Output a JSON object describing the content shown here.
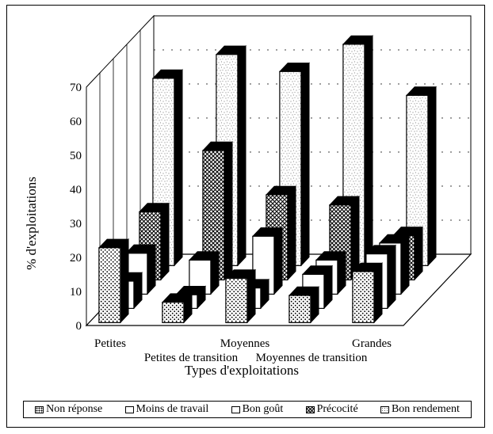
{
  "chart_data": {
    "type": "bar",
    "title": "",
    "xlabel": "Types d'exploitations",
    "ylabel": "% d'exploitations",
    "ylim": [
      0,
      70
    ],
    "yticks": [
      "0",
      "10",
      "20",
      "30",
      "40",
      "50",
      "60",
      "70"
    ],
    "categories": [
      "Petites",
      "Petites de transition",
      "Moyennes",
      "Moyennes de transition",
      "Grandes"
    ],
    "series": [
      {
        "name": "Non réponse",
        "values": [
          22,
          6,
          13,
          8,
          15
        ]
      },
      {
        "name": "Moins de travail",
        "values": [
          8,
          4,
          6,
          10,
          16
        ]
      },
      {
        "name": "Bon goût",
        "values": [
          12,
          10,
          17,
          10,
          15
        ]
      },
      {
        "name": "Précocité",
        "values": [
          20,
          38,
          25,
          22,
          13
        ]
      },
      {
        "name": "Bon rendement",
        "values": [
          55,
          62,
          57,
          65,
          50
        ]
      }
    ],
    "grid": true,
    "legend_position": "bottom"
  },
  "colors": {
    "background": "#ffffff",
    "wall": "#ffffff",
    "ink": "#000000"
  }
}
